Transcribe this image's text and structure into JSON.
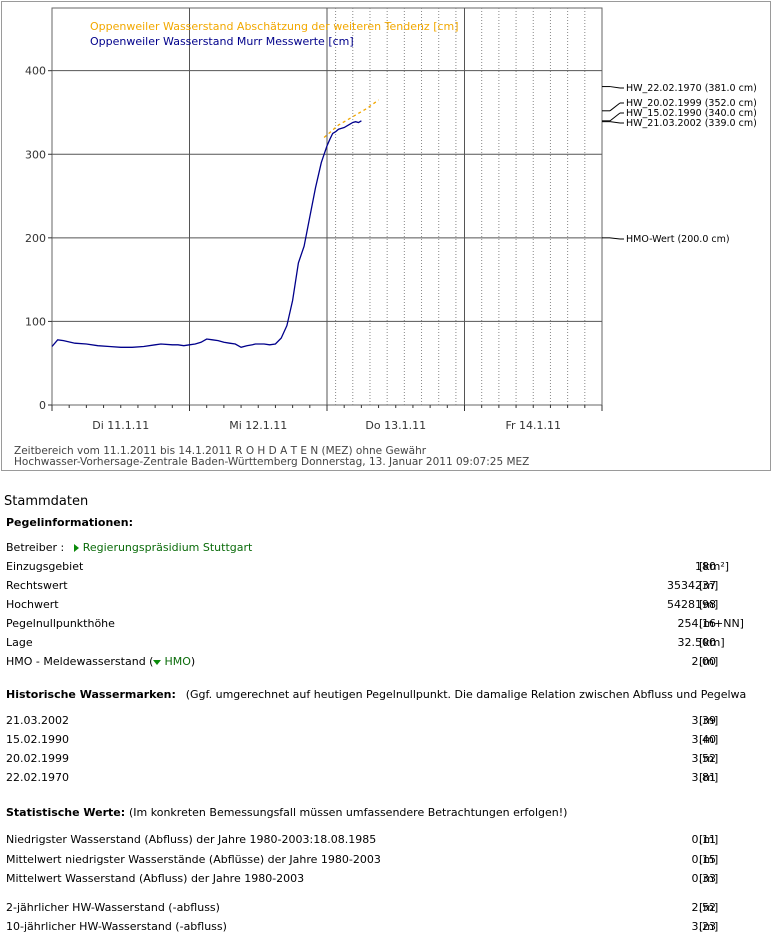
{
  "chart_data": {
    "type": "line",
    "legend": [
      {
        "name": "Oppenweiler Wasserstand Abschätzung der weiteren Tendenz [cm]",
        "color": "#f2a800"
      },
      {
        "name": "Oppenweiler Wasserstand Murr Messwerte [cm]",
        "color": "#00008b"
      }
    ],
    "y_ticks": [
      "0",
      "100",
      "200",
      "300",
      "400"
    ],
    "ylim": [
      0,
      475
    ],
    "x_ticks": [
      "Di 11.1.11",
      "Mi 12.1.11",
      "Do 13.1.11",
      "Fr 14.1.11"
    ],
    "xlim_hours": [
      0,
      96
    ],
    "measured": {
      "x": [
        0,
        1,
        2,
        4,
        6,
        8,
        10,
        12,
        14,
        16,
        18,
        19,
        21,
        22,
        23,
        24,
        25,
        26,
        27,
        28,
        29,
        30,
        31,
        32,
        33,
        34,
        35,
        35.5,
        36,
        37,
        38,
        39,
        40,
        41,
        42,
        43,
        44,
        45,
        46,
        46.5,
        47,
        47.5,
        48,
        48.5,
        49,
        49.5,
        50,
        50.5,
        51,
        51.5,
        52,
        52.5,
        53,
        53.5,
        54
      ],
      "y": [
        70,
        78,
        77,
        74,
        73,
        71,
        70,
        69,
        69,
        70,
        72,
        73,
        72,
        72,
        71,
        72,
        73,
        75,
        79,
        78,
        77,
        75,
        74,
        73,
        69,
        71,
        72,
        73,
        73,
        73,
        72,
        73,
        80,
        95,
        125,
        170,
        190,
        225,
        260,
        275,
        290,
        300,
        310,
        318,
        325,
        327,
        330,
        331,
        332,
        334,
        336,
        338,
        339,
        338,
        340
      ]
    },
    "forecast": {
      "x": [
        47.5,
        50,
        52.5,
        55,
        57
      ],
      "y": [
        320,
        335,
        345,
        355,
        365
      ]
    },
    "markers": [
      {
        "label": "HW_22.02.1970 (381.0 cm)",
        "value": 381
      },
      {
        "label": "HW_20.02.1999 (352.0 cm)",
        "value": 352
      },
      {
        "label": "HW_15.02.1990 (340.0 cm)",
        "value": 340
      },
      {
        "label": "HW_21.03.2002 (339.0 cm)",
        "value": 339
      },
      {
        "label": "HMO-Wert (200.0 cm)",
        "value": 200
      }
    ],
    "footer_line1": "Zeitbereich vom 11.1.2011  bis 14.1.2011      R O H D A T E N (MEZ) ohne Gewähr",
    "footer_line2": "Hochwasser-Vorhersage-Zentrale Baden-Württemberg Donnerstag, 13. Januar 2011 09:07:25 MEZ"
  },
  "section_title": "Stammdaten",
  "pegel": {
    "heading": "Pegelinformationen:",
    "betreiber_label": "Betreiber :",
    "betreiber_link": "Regierungspräsidium Stuttgart",
    "rows": [
      {
        "label": "Einzugsgebiet",
        "value": "180",
        "unit": "[km²]"
      },
      {
        "label": "Rechtswert",
        "value": "3534237",
        "unit": "[m]"
      },
      {
        "label": "Hochwert",
        "value": "5428198",
        "unit": "[m]"
      },
      {
        "label": "Pegelnullpunkthöhe",
        "value": "254.16",
        "unit": "[m+NN]"
      },
      {
        "label": "Lage",
        "value": "32.500",
        "unit": "[km]"
      }
    ],
    "hmo_label_pre": "HMO - Meldewasserstand (",
    "hmo_link": "HMO",
    "hmo_label_post": ")",
    "hmo_value": "2.00",
    "hmo_unit": "[m]"
  },
  "historisch": {
    "heading": "Historische Wassermarken:",
    "note": "(Ggf. umgerechnet auf heutigen Pegelnullpunkt. Die damalige Relation zwischen Abfluss und Pegelwa",
    "rows": [
      {
        "label": "21.03.2002",
        "value": "3.39",
        "unit": "[m]"
      },
      {
        "label": "15.02.1990",
        "value": "3.40",
        "unit": "[m]"
      },
      {
        "label": "20.02.1999",
        "value": "3.52",
        "unit": "[m]"
      },
      {
        "label": "22.02.1970",
        "value": "3.81",
        "unit": "[m]"
      }
    ]
  },
  "statistik": {
    "heading": "Statistische Werte:",
    "note": "(Im konkreten Bemessungsfall müssen umfassendere Betrachtungen erfolgen!)",
    "rows": [
      {
        "label": "Niedrigster Wasserstand (Abfluss) der Jahre 1980-2003:18.08.1985",
        "value": "0.11",
        "unit": "[m]"
      },
      {
        "label": "Mittelwert niedrigster Wasserstände (Abflüsse) der Jahre 1980-2003",
        "value": "0.15",
        "unit": "[m]"
      },
      {
        "label": "Mittelwert Wasserstand (Abfluss) der Jahre 1980-2003",
        "value": "0.33",
        "unit": "[m]"
      },
      {
        "label": "2-jährlicher HW-Wasserstand (-abfluss)",
        "value": "2.52",
        "unit": "[m]"
      },
      {
        "label": "10-jährlicher HW-Wasserstand (-abfluss)",
        "value": "3.23",
        "unit": "[m]"
      }
    ]
  }
}
